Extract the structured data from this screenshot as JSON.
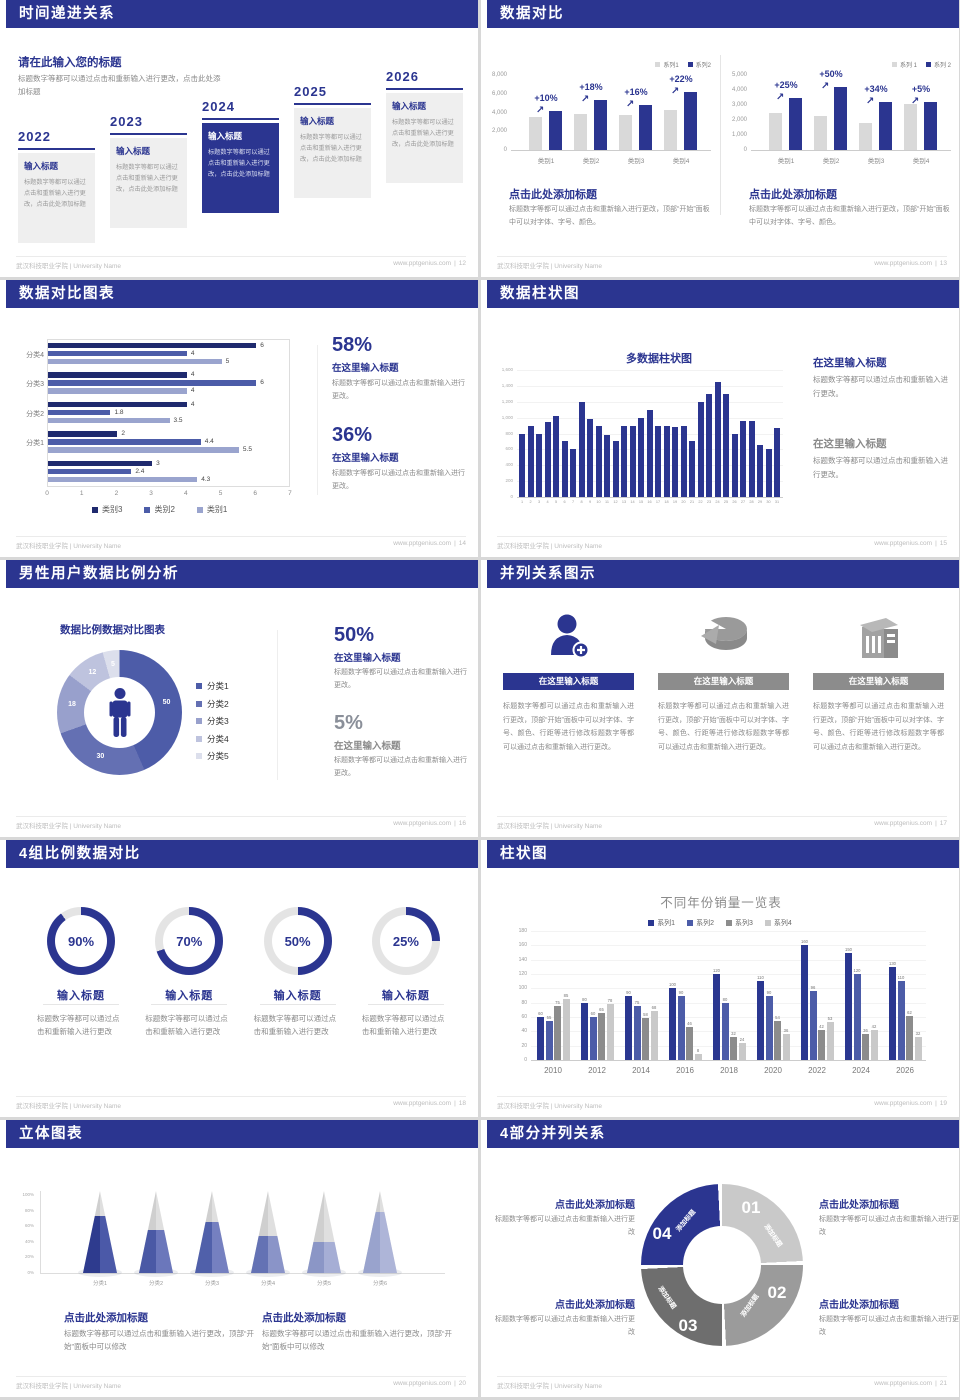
{
  "footer": {
    "org": "武汉科技职业学院 | University Name",
    "site": "www.pptgenius.com",
    "sep": "|"
  },
  "colors": {
    "navy": "#2B3590",
    "body_gray": "#8A8A8A",
    "bar_gray": "#D9D9D9"
  },
  "chart_data": [
    {
      "id": "compare-left",
      "type": "bar",
      "categories": [
        "类别1",
        "类别2",
        "类别3",
        "类别4"
      ],
      "legend": [
        "系列1",
        "系列2"
      ],
      "y_ticks": [
        "8,000",
        "6,000",
        "4,000",
        "2,000",
        "0"
      ],
      "ymax": 8000,
      "series": [
        {
          "name": "系列1",
          "values": [
            3500,
            3800,
            3700,
            4300
          ]
        },
        {
          "name": "系列2",
          "values": [
            4200,
            5300,
            4800,
            6200
          ]
        }
      ],
      "growth_labels": [
        "+10%",
        "+18%",
        "+16%",
        "+22%"
      ]
    },
    {
      "id": "compare-right",
      "type": "bar",
      "categories": [
        "类别1",
        "类别2",
        "类别3",
        "类别4"
      ],
      "legend": [
        "系列 1",
        "系列 2"
      ],
      "y_ticks": [
        "5,000",
        "4,000",
        "3,000",
        "2,000",
        "1,000",
        "0"
      ],
      "ymax": 5000,
      "series": [
        {
          "name": "系列 1",
          "values": [
            2500,
            2300,
            1800,
            3100
          ]
        },
        {
          "name": "系列 2",
          "values": [
            3500,
            4200,
            3200,
            3200
          ]
        }
      ],
      "growth_labels": [
        "+25%",
        "+50%",
        "+34%",
        "+5%"
      ]
    },
    {
      "id": "h-bars",
      "type": "bar",
      "orientation": "horizontal",
      "xmax": 7,
      "x_ticks": [
        "0",
        "1",
        "2",
        "3",
        "4",
        "5",
        "6",
        "7"
      ],
      "group_labels": [
        "分类4",
        "分类3",
        "分类2",
        "分类1",
        ""
      ],
      "legend": [
        "类别3",
        "类别2",
        "类别1"
      ],
      "series_colors": [
        "#1F2A6E",
        "#4C5CA8",
        "#9AA4CE"
      ],
      "values": [
        [
          6,
          4,
          5
        ],
        [
          4,
          6,
          4
        ],
        [
          4,
          1.8,
          3.5
        ],
        [
          2,
          4.4,
          5.5
        ],
        [
          3,
          2.4,
          4.3
        ]
      ]
    },
    {
      "id": "daily-bars",
      "type": "bar",
      "title": "多数据柱状图",
      "ymax": 1600,
      "y_ticks": [
        "1,600",
        "1,400",
        "1,200",
        "1,000",
        "800",
        "600",
        "400",
        "200",
        "0"
      ],
      "x_labels": [
        "1",
        "2",
        "3",
        "4",
        "5",
        "6",
        "7",
        "8",
        "9",
        "10",
        "11",
        "12",
        "13",
        "14",
        "15",
        "16",
        "17",
        "18",
        "19",
        "20",
        "21",
        "22",
        "23",
        "24",
        "25",
        "26",
        "27",
        "28",
        "29",
        "30",
        "31"
      ],
      "values": [
        800,
        900,
        800,
        950,
        1020,
        700,
        600,
        1200,
        980,
        900,
        780,
        700,
        890,
        890,
        990,
        1100,
        900,
        900,
        880,
        900,
        700,
        1200,
        1300,
        1450,
        1300,
        800,
        960,
        960,
        660,
        600,
        870
      ]
    },
    {
      "id": "donut",
      "type": "pie",
      "title": "数据比例数据对比图表",
      "slices": [
        {
          "label": "分类1",
          "value": 50,
          "color": "#4D5CA8"
        },
        {
          "label": "分类2",
          "value": 30,
          "color": "#6470B3"
        },
        {
          "label": "分类3",
          "value": 18,
          "color": "#98A0CC"
        },
        {
          "label": "分类4",
          "value": 12,
          "color": "#BEC3DE"
        },
        {
          "label": "分类5",
          "value": 5,
          "color": "#DCDFEC"
        }
      ]
    },
    {
      "id": "yearly-sales",
      "type": "bar",
      "title": "不同年份销量一览表",
      "ymax": 180,
      "legend": [
        "系列1",
        "系列2",
        "系列3",
        "系列4"
      ],
      "series_colors": [
        "#2A3790",
        "#4C5CA8",
        "#8C8C8C",
        "#C9C9C9"
      ],
      "y_ticks": [
        "180",
        "160",
        "140",
        "120",
        "100",
        "80",
        "60",
        "40",
        "20",
        "0"
      ],
      "categories": [
        "2010",
        "2012",
        "2014",
        "2016",
        "2018",
        "2020",
        "2022",
        "2024",
        "2026"
      ],
      "series": [
        {
          "name": "系列1",
          "values": [
            60,
            80,
            90,
            100,
            120,
            110,
            160,
            150,
            130
          ]
        },
        {
          "name": "系列2",
          "values": [
            55,
            60,
            75,
            90,
            80,
            90,
            96,
            120,
            110
          ]
        },
        {
          "name": "系列3",
          "values": [
            75,
            65,
            58,
            46,
            32,
            54,
            42,
            36,
            62
          ]
        },
        {
          "name": "系列4",
          "values": [
            85,
            78,
            68,
            8,
            24,
            36,
            53,
            42,
            32
          ]
        }
      ]
    },
    {
      "id": "cones",
      "type": "bar",
      "style": "cone-3d",
      "y_ticks": [
        "100%",
        "80%",
        "60%",
        "40%",
        "20%",
        "0%"
      ],
      "categories": [
        "分类1",
        "分类2",
        "分类3",
        "分类4",
        "分类5",
        "分类6"
      ],
      "values_pct": [
        70,
        52,
        62,
        45,
        38,
        75
      ],
      "colors": [
        "#2E3B8E",
        "#4A59A5",
        "#5060AA",
        "#6472B4",
        "#8B96C6",
        "#99A3CD"
      ],
      "colors_light": [
        "#4B59A8",
        "#6B77BB",
        "#7580C0",
        "#8A94C8",
        "#A6AED5",
        "#AEB5D8"
      ]
    }
  ],
  "slides": [
    {
      "type": "timeline",
      "header": "时间递进关系",
      "page": "12",
      "intro_title": "请在此输入您的标题",
      "intro_body": "标题数字等都可以通过点击和重新输入进行更改，点击此处添加标题",
      "years": [
        "2022",
        "2023",
        "2024",
        "2025",
        "2026"
      ],
      "highlight_index": 2,
      "item_title": "输入标题",
      "item_body": "标题数字等都可以通过点击和重新输入进行更改，点击此处添加标题"
    },
    {
      "type": "dual-bars",
      "header": "数据对比",
      "page": "13",
      "charts": [
        0,
        1
      ],
      "section_title": "点击此处添加标题",
      "section_body": "标题数字等都可以通过点击和重新输入进行更改，顶部“开始”面板中可以对字体、字号、颜色。"
    },
    {
      "type": "h-bars",
      "header": "数据对比图表",
      "page": "14",
      "chart": 2,
      "stats": [
        {
          "pct": "58%",
          "title": "在这里输入标题",
          "body": "标题数字等都可以通过点击和重新输入进行更改。",
          "accent": true
        },
        {
          "pct": "36%",
          "title": "在这里输入标题",
          "body": "标题数字等都可以通过点击和重新输入进行更改。",
          "accent": true
        }
      ]
    },
    {
      "type": "multi-bars",
      "header": "数据柱状图",
      "page": "15",
      "chart": 3,
      "stats": [
        {
          "title": "在这里输入标题",
          "body": "标题数字等都可以通过点击和重新输入进行更改。",
          "accent": true
        },
        {
          "title": "在这里输入标题",
          "body": "标题数字等都可以通过点击和重新输入进行更改。",
          "accent": false
        }
      ]
    },
    {
      "type": "donut",
      "header": "男性用户数据比例分析",
      "page": "16",
      "chart": 4,
      "stats": [
        {
          "pct": "50%",
          "title": "在这里输入标题",
          "body": "标题数字等都可以通过点击和重新输入进行更改。",
          "accent": true
        },
        {
          "pct": "5%",
          "title": "在这里输入标题",
          "body": "标题数字等都可以通过点击和重新输入进行更改。",
          "accent": false
        }
      ]
    },
    {
      "type": "three-col",
      "header": "并列关系图示",
      "page": "17",
      "col_title": "在这里输入标题",
      "col_body": "标题数字等都可以通过点击和重新输入进行更改，顶部“开始”面板中可以对字体、字号、颜色、行距等进行修改标题数字等都可以通过点击和重新输入进行更改。",
      "icons": [
        "person-add-icon",
        "pie-3d-icon",
        "building-icon"
      ]
    },
    {
      "type": "gauges",
      "header": "4组比例数据对比",
      "page": "18",
      "percents": [
        90,
        70,
        50,
        25
      ],
      "item_title": "输入标题",
      "item_body": "标题数字等都可以通过点击和重新输入进行更改"
    },
    {
      "type": "grouped-bars",
      "header": "柱状图",
      "page": "19",
      "chart": 5
    },
    {
      "type": "cones",
      "header": "立体图表",
      "page": "20",
      "chart": 6,
      "sections": [
        {
          "title": "点击此处添加标题",
          "body": "标题数字等都可以通过点击和重新输入进行更改，顶部“开始”面板中可以修改"
        },
        {
          "title": "点击此处添加标题",
          "body": "标题数字等都可以通过点击和重新输入进行更改，顶部“开始”面板中可以修改"
        }
      ]
    },
    {
      "type": "ring4",
      "header": "4部分并列关系",
      "page": "21",
      "segments": [
        {
          "num": "01",
          "label": "添加标题",
          "color": "#C9C9C9"
        },
        {
          "num": "02",
          "label": "添加标题",
          "color": "#9B9B9B"
        },
        {
          "num": "03",
          "label": "添加标题",
          "color": "#6E6E6E"
        },
        {
          "num": "04",
          "label": "添加标题",
          "color": "#2B3590"
        }
      ],
      "blocks": [
        {
          "title": "点击此处添加标题",
          "body": "标题数字等都可以通过点击和重新输入进行更改"
        },
        {
          "title": "点击此处添加标题",
          "body": "标题数字等都可以通过点击和重新输入进行更改"
        },
        {
          "title": "点击此处添加标题",
          "body": "标题数字等都可以通过点击和重新输入进行更改"
        },
        {
          "title": "点击此处添加标题",
          "body": "标题数字等都可以通过点击和重新输入进行更改"
        }
      ]
    }
  ]
}
